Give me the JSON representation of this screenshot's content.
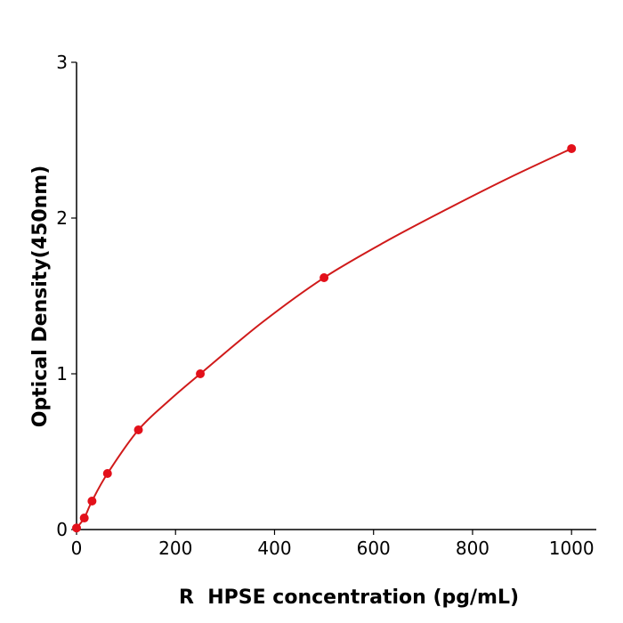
{
  "chart_data": {
    "type": "scatter",
    "x_label": "R  HPSE concentration (pg/mL)",
    "y_label": "Optical Density(450nm)",
    "xlim": [
      0,
      1050
    ],
    "ylim": [
      0,
      3
    ],
    "xticks": [
      0,
      200,
      400,
      600,
      800,
      1000
    ],
    "yticks": [
      0,
      1,
      2,
      3
    ],
    "series": [
      {
        "kind": "points",
        "color": "#e3101a",
        "x": [
          0,
          15.6,
          31.25,
          62.5,
          125,
          250,
          500,
          1000
        ],
        "values": [
          0.01,
          0.074,
          0.183,
          0.36,
          0.64,
          1.0,
          1.617,
          2.446
        ]
      },
      {
        "kind": "curve",
        "color": "#d01a1a",
        "x": [
          0,
          15.6,
          31.25,
          62.5,
          125,
          187.5,
          250,
          375,
          500,
          625,
          750,
          875,
          1000
        ],
        "values": [
          0.01,
          0.074,
          0.183,
          0.36,
          0.64,
          0.83,
          1.0,
          1.33,
          1.617,
          1.85,
          2.06,
          2.26,
          2.446
        ]
      }
    ]
  }
}
